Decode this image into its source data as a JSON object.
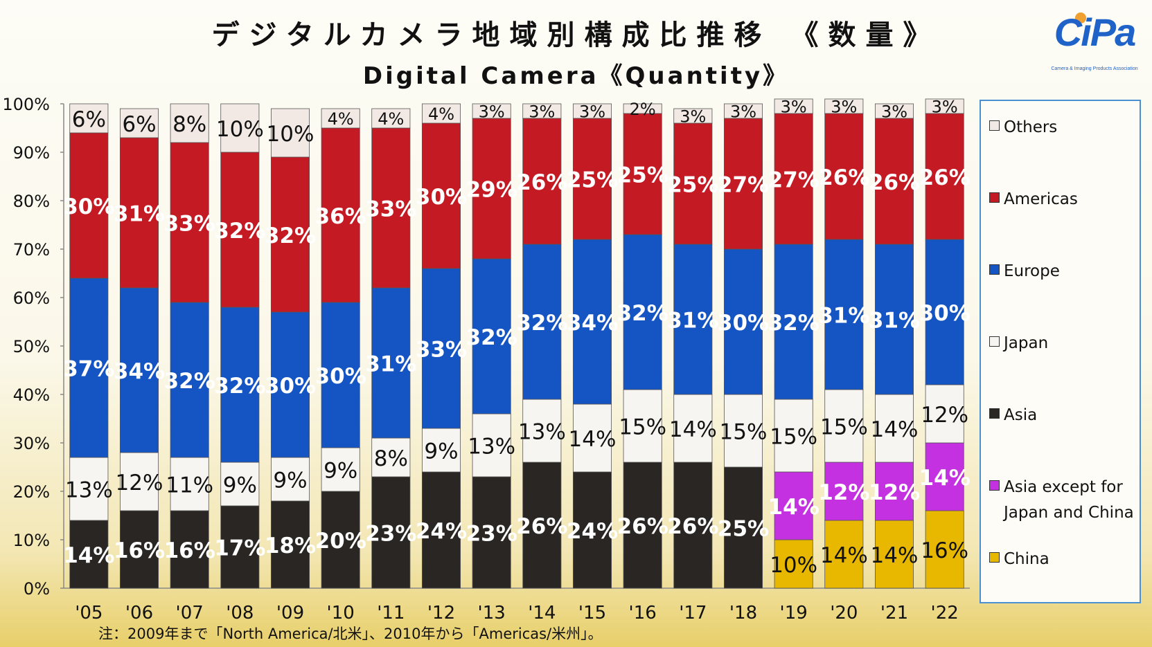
{
  "page": {
    "title_jp": "デジタルカメラ地域別構成比推移 《数量》",
    "title_en": "Digital Camera《Quantity》",
    "logo_text": "CiPa",
    "logo_subtext": "Camera & Imaging Products Association",
    "note": "注：2009年まで「North America/北米」、2010年から「Americas/米州」。"
  },
  "chart_data": {
    "type": "bar",
    "stacked": true,
    "categories": [
      "'05",
      "'06",
      "'07",
      "'08",
      "'09",
      "'10",
      "'11",
      "'12",
      "'13",
      "'14",
      "'15",
      "'16",
      "'17",
      "'18",
      "'19",
      "'20",
      "'21",
      "'22"
    ],
    "ylim": [
      0,
      100
    ],
    "yticks": [
      "0%",
      "10%",
      "20%",
      "30%",
      "40%",
      "50%",
      "60%",
      "70%",
      "80%",
      "90%",
      "100%"
    ],
    "grid": false,
    "legend_position": "right",
    "series": [
      {
        "name": "China",
        "color": "#e8b800",
        "label_color": "#111111",
        "values": [
          null,
          null,
          null,
          null,
          null,
          null,
          null,
          null,
          null,
          null,
          null,
          null,
          null,
          null,
          10,
          14,
          14,
          16
        ],
        "labels": [
          null,
          null,
          null,
          null,
          null,
          null,
          null,
          null,
          null,
          null,
          null,
          null,
          null,
          null,
          "10%",
          "14%",
          "14%",
          "16%"
        ]
      },
      {
        "name": "Asia except for\nJapan and China",
        "color": "#c431e0",
        "label_color": "#ffffff",
        "values": [
          null,
          null,
          null,
          null,
          null,
          null,
          null,
          null,
          null,
          null,
          null,
          null,
          null,
          null,
          14,
          12,
          12,
          14
        ],
        "labels": [
          null,
          null,
          null,
          null,
          null,
          null,
          null,
          null,
          null,
          null,
          null,
          null,
          null,
          null,
          "14%",
          "12%",
          "12%",
          "14%"
        ]
      },
      {
        "name": "Asia",
        "color": "#2a2624",
        "label_color": "#ffffff",
        "values": [
          14,
          16,
          16,
          17,
          18,
          20,
          23,
          24,
          23,
          26,
          24,
          26,
          26,
          25,
          null,
          null,
          null,
          null
        ],
        "labels": [
          "14%",
          "16%",
          "16%",
          "17%",
          "18%",
          "20%",
          "23%",
          "24%",
          "23%",
          "26%",
          "24%",
          "26%",
          "26%",
          "25%",
          null,
          null,
          null,
          null
        ]
      },
      {
        "name": "Japan",
        "color": "#f7f5f1",
        "label_color": "#111111",
        "values": [
          13,
          12,
          11,
          9,
          9,
          9,
          8,
          9,
          13,
          13,
          14,
          15,
          14,
          15,
          15,
          15,
          14,
          12
        ],
        "labels": [
          "13%",
          "12%",
          "11%",
          "9%",
          "9%",
          "9%",
          "8%",
          "9%",
          "13%",
          "13%",
          "14%",
          "15%",
          "14%",
          "15%",
          "15%",
          "15%",
          "14%",
          "12%"
        ]
      },
      {
        "name": "Europe",
        "color": "#1554c3",
        "label_color": "#ffffff",
        "values": [
          37,
          34,
          32,
          32,
          30,
          30,
          31,
          33,
          32,
          32,
          34,
          32,
          31,
          30,
          32,
          31,
          31,
          30
        ],
        "labels": [
          "37%",
          "34%",
          "32%",
          "32%",
          "30%",
          "30%",
          "31%",
          "33%",
          "32%",
          "32%",
          "34%",
          "32%",
          "31%",
          "30%",
          "32%",
          "31%",
          "31%",
          "30%"
        ]
      },
      {
        "name": "Americas",
        "color": "#c41a24",
        "label_color": "#ffffff",
        "values": [
          30,
          31,
          33,
          32,
          32,
          36,
          33,
          30,
          29,
          26,
          25,
          25,
          25,
          27,
          27,
          26,
          26,
          26
        ],
        "labels": [
          "30%",
          "31%",
          "33%",
          "32%",
          "32%",
          "36%",
          "33%",
          "30%",
          "29%",
          "26%",
          "25%",
          "25%",
          "25%",
          "27%",
          "27%",
          "26%",
          "26%",
          "26%"
        ]
      },
      {
        "name": "Others",
        "color": "#f2e9e4",
        "label_color": "#111111",
        "values": [
          6,
          6,
          8,
          10,
          10,
          4,
          4,
          4,
          3,
          3,
          3,
          2,
          3,
          3,
          3,
          3,
          3,
          3
        ],
        "labels": [
          "6%",
          "6%",
          "8%",
          "10%",
          "10%",
          "4%",
          "4%",
          "4%",
          "3%",
          "3%",
          "3%",
          "2%",
          "3%",
          "3%",
          "3%",
          "3%",
          "3%",
          "3%"
        ]
      }
    ]
  },
  "legend": {
    "items": [
      {
        "label": "Others",
        "color": "#f2e9e4"
      },
      {
        "label": "Americas",
        "color": "#c41a24"
      },
      {
        "label": "Europe",
        "color": "#1554c3"
      },
      {
        "label": "Japan",
        "color": "#f7f5f1"
      },
      {
        "label": "Asia",
        "color": "#2a2624"
      },
      {
        "label": "Asia except for\nJapan and China",
        "color": "#c431e0"
      },
      {
        "label": "China",
        "color": "#e8b800"
      }
    ]
  }
}
